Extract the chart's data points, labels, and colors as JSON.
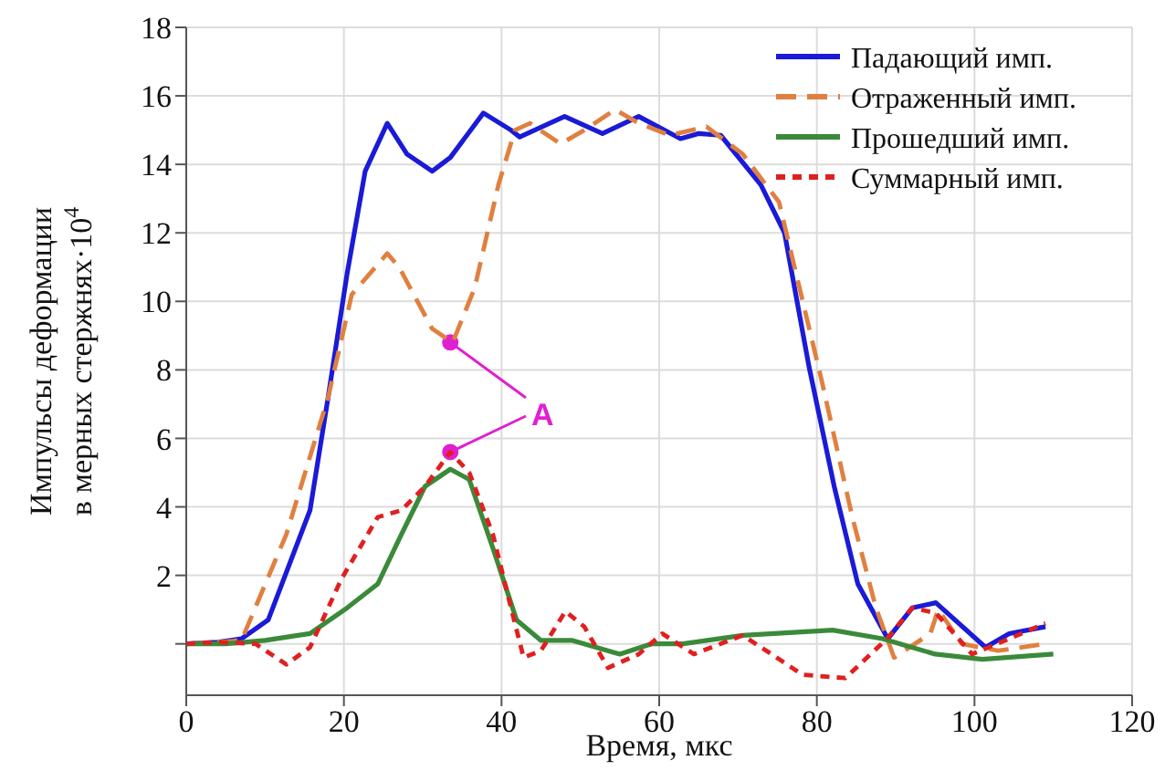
{
  "chart_data": {
    "type": "line",
    "xlabel": "Время, мкс",
    "ylabel": "Импульсы деформации\nв мерных стержнях·10$^{4}$",
    "xlim": [
      0,
      120
    ],
    "ylim": [
      -1.5,
      18
    ],
    "xticks": [
      0,
      20,
      40,
      60,
      80,
      100,
      120
    ],
    "yticks": [
      {
        "value": 0,
        "label": null
      },
      2,
      4,
      6,
      8,
      10,
      12,
      14,
      16,
      18
    ],
    "grid": true,
    "legend": "top right",
    "marker": "none",
    "annotations": [
      {
        "text": "A",
        "x": 33.5,
        "y": 8.8
      }
    ],
    "series": [
      {
        "name": "Падающий имп.",
        "color": "#1a1ad8",
        "line_style": "solid",
        "x": [
          0,
          4,
          7,
          10.4,
          15.7,
          18,
          20.4,
          22.7,
          25.5,
          28,
          31.2,
          33.5,
          37.7,
          41.2,
          42.3,
          48,
          52.8,
          57.4,
          62.7,
          65,
          67.8,
          72.9,
          75.9,
          79,
          82.2,
          85.2,
          89,
          92.1,
          95.1,
          101.4,
          104.4,
          109
        ],
        "values": [
          0,
          0.05,
          0.15,
          0.7,
          3.9,
          7.2,
          10.8,
          13.8,
          15.2,
          14.3,
          13.8,
          14.2,
          15.5,
          15,
          14.8,
          15.4,
          14.9,
          15.4,
          14.75,
          14.9,
          14.85,
          13.4,
          12,
          8.1,
          4.6,
          1.75,
          0.15,
          1.05,
          1.2,
          -0.1,
          0.3,
          0.5
        ]
      },
      {
        "name": "Отраженный имп.",
        "color": "#e08040",
        "line_style": "dashed",
        "x": [
          0,
          4,
          7,
          12.7,
          18,
          21,
          25.5,
          27,
          31.2,
          33.8,
          36.6,
          39.6,
          41.7,
          43.6,
          47.5,
          50.5,
          54.4,
          57.4,
          61.3,
          66,
          70.6,
          75.2,
          80.6,
          84.5,
          87.5,
          89.8,
          94.4,
          95.4,
          98.4,
          103,
          109
        ],
        "values": [
          0,
          0.05,
          0.1,
          3.2,
          7.2,
          10.2,
          11.4,
          11,
          9.2,
          8.8,
          10.4,
          13.4,
          15,
          15.2,
          14.6,
          15,
          15.6,
          15.2,
          14.85,
          15.1,
          14.3,
          12.9,
          7.7,
          3.7,
          1.05,
          -0.4,
          0.3,
          1,
          0,
          -0.2,
          0
        ]
      },
      {
        "name": "Прошедший имп.",
        "color": "#3a8a3a",
        "line_style": "solid",
        "x": [
          0,
          5,
          10,
          15.7,
          20.4,
          24.3,
          27.3,
          30.3,
          33.5,
          35.9,
          38.9,
          41.9,
          45,
          49,
          55,
          59,
          63,
          70.6,
          82,
          88.3,
          95,
          101,
          110
        ],
        "values": [
          0,
          0,
          0.1,
          0.3,
          1.05,
          1.75,
          3.2,
          4.6,
          5.1,
          4.8,
          2.8,
          0.7,
          0.1,
          0.1,
          -0.3,
          0,
          0,
          0.25,
          0.4,
          0.15,
          -0.3,
          -0.45,
          -0.3
        ]
      },
      {
        "name": "Суммарный имп.",
        "color": "#e02020",
        "line_style": "dotted",
        "x": [
          0,
          4,
          8.8,
          12.7,
          15.7,
          19.7,
          24.3,
          27.3,
          30.3,
          33.5,
          35.9,
          38.9,
          41.2,
          42.8,
          45,
          48.1,
          50.5,
          53.5,
          57.4,
          60.4,
          64.4,
          70.6,
          78.2,
          83.6,
          88.9,
          92.1,
          95.1,
          99.7,
          104.4,
          109
        ],
        "values": [
          0,
          0.05,
          0,
          -0.6,
          -0.1,
          1.9,
          3.7,
          3.9,
          4.6,
          5.6,
          5,
          3.2,
          1.05,
          -0.4,
          -0.2,
          0.95,
          0.5,
          -0.7,
          -0.3,
          0.3,
          -0.3,
          0.25,
          -0.9,
          -1,
          0.15,
          1.05,
          0.9,
          -0.3,
          0.15,
          0.6
        ]
      }
    ]
  }
}
